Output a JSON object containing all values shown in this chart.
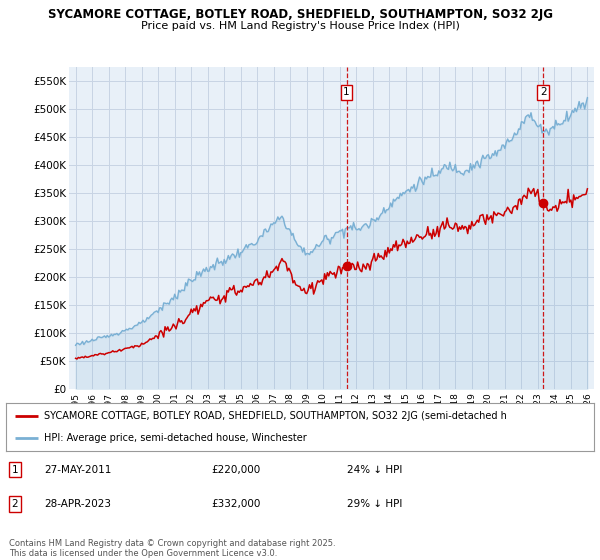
{
  "title_line1": "SYCAMORE COTTAGE, BOTLEY ROAD, SHEDFIELD, SOUTHAMPTON, SO32 2JG",
  "title_line2": "Price paid vs. HM Land Registry's House Price Index (HPI)",
  "bg_color": "#ffffff",
  "chart_bg_color": "#e8f0f8",
  "grid_color": "#c8d4e4",
  "hpi_color": "#7ab0d4",
  "price_color": "#cc0000",
  "ylim": [
    0,
    575000
  ],
  "yticks": [
    0,
    50000,
    100000,
    150000,
    200000,
    250000,
    300000,
    350000,
    400000,
    450000,
    500000,
    550000
  ],
  "ytick_labels": [
    "£0",
    "£50K",
    "£100K",
    "£150K",
    "£200K",
    "£250K",
    "£300K",
    "£350K",
    "£400K",
    "£450K",
    "£500K",
    "£550K"
  ],
  "sale1_x": 2011.41,
  "sale1_y": 220000,
  "sale1_label": "1",
  "sale2_x": 2023.33,
  "sale2_y": 332000,
  "sale2_label": "2",
  "legend_line1": "SYCAMORE COTTAGE, BOTLEY ROAD, SHEDFIELD, SOUTHAMPTON, SO32 2JG (semi-detached h",
  "legend_line2": "HPI: Average price, semi-detached house, Winchester",
  "footer": "Contains HM Land Registry data © Crown copyright and database right 2025.\nThis data is licensed under the Open Government Licence v3.0.",
  "dashed_line_color": "#cc0000",
  "xlim_min": 1994.6,
  "xlim_max": 2026.4
}
